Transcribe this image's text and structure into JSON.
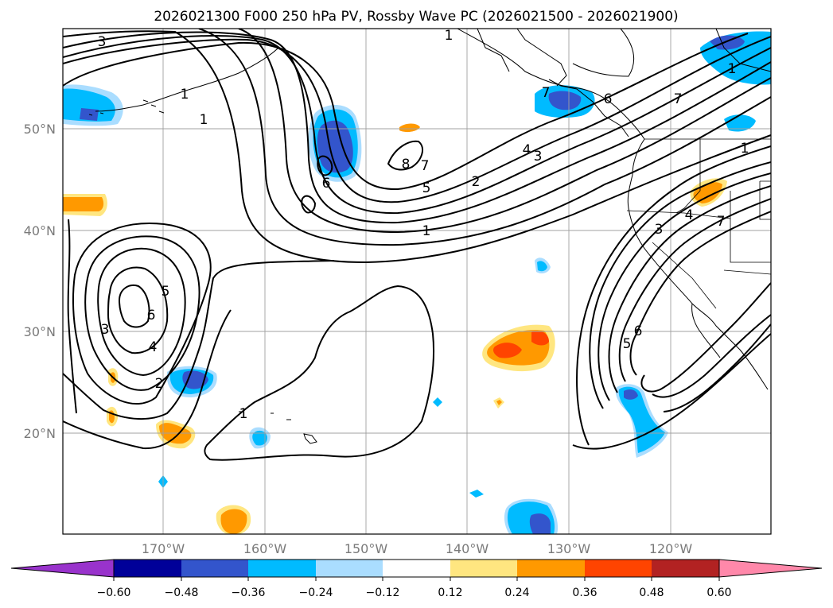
{
  "title": "2026021300 F000 250 hPa PV, Rossby Wave PC (2026021500 - 2026021900)",
  "colors": {
    "neg_extend": "#9933cc",
    "n060": "#000099",
    "n048": "#3355cc",
    "n036": "#00bbff",
    "n024": "#aaddff",
    "zero": "#ffffff",
    "p012": "#ffe680",
    "p024": "#ff9900",
    "p036": "#ff4400",
    "p048": "#b22222",
    "p060": "#ff88aa"
  },
  "chart_data": {
    "type": "map",
    "region": {
      "lon": [
        -180,
        -110
      ],
      "lat": [
        10,
        60
      ]
    },
    "lat_ticks": [
      "50°N",
      "40°N",
      "30°N",
      "20°N"
    ],
    "lon_ticks": [
      "170°W",
      "160°W",
      "150°W",
      "140°W",
      "130°W",
      "120°W"
    ],
    "colorbar": {
      "levels": [
        "−0.60",
        "−0.48",
        "−0.36",
        "−0.24",
        "−0.12",
        "0.12",
        "0.24",
        "0.36",
        "0.48",
        "0.60"
      ],
      "extend": "both"
    },
    "contour_labels": [
      "3",
      "1",
      "1",
      "8",
      "7",
      "6",
      "4",
      "3",
      "2",
      "5",
      "1",
      "7",
      "6",
      "1",
      "5",
      "6",
      "4",
      "3",
      "2",
      "1",
      "3",
      "4",
      "7",
      "5",
      "6",
      "1",
      "7",
      "1"
    ]
  }
}
